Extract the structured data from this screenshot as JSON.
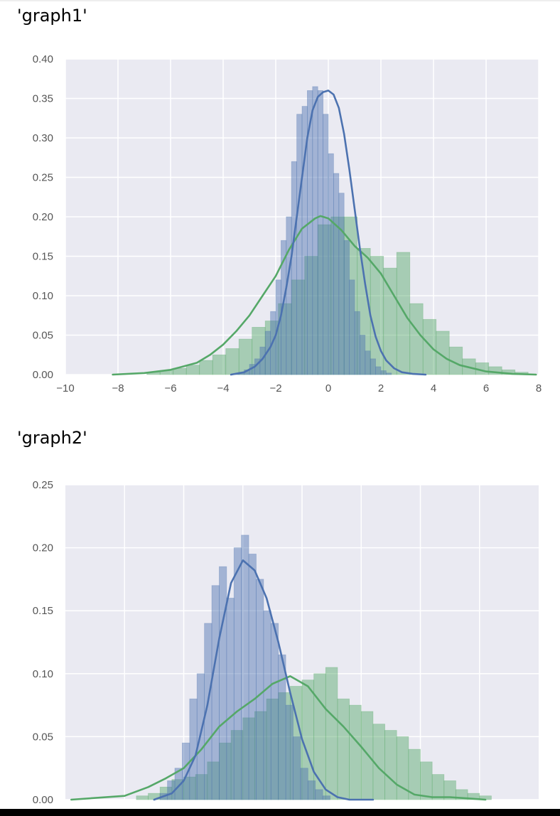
{
  "outputs": [
    {
      "label": "'graph1'"
    },
    {
      "label": "'graph2'"
    }
  ],
  "colors": {
    "background": "#eaeaf2",
    "grid": "#ffffff",
    "series_blue": "#4c72b0",
    "series_green": "#55a868"
  },
  "chart_data": [
    {
      "type": "histogram",
      "grid": true,
      "legend": "none",
      "xlim": [
        -10,
        8
      ],
      "ylim": [
        0,
        0.4
      ],
      "x_ticks": [
        "−10",
        "−8",
        "−6",
        "−4",
        "−2",
        "0",
        "2",
        "4",
        "6",
        "8"
      ],
      "x_tick_values": [
        -10,
        -8,
        -6,
        -4,
        -2,
        0,
        2,
        4,
        6,
        8
      ],
      "y_ticks": [
        "0.00",
        "0.05",
        "0.10",
        "0.15",
        "0.20",
        "0.25",
        "0.30",
        "0.35",
        "0.40"
      ],
      "y_tick_values": [
        0,
        0.05,
        0.1,
        0.15,
        0.2,
        0.25,
        0.3,
        0.35,
        0.4
      ],
      "series": [
        {
          "color": "blue",
          "bins": {
            "start": -3.6,
            "width": 0.2,
            "heights": [
              0.001,
              0.003,
              0.006,
              0.013,
              0.02,
              0.035,
              0.055,
              0.08,
              0.12,
              0.17,
              0.2,
              0.27,
              0.33,
              0.34,
              0.36,
              0.365,
              0.36,
              0.33,
              0.28,
              0.255,
              0.23,
              0.17,
              0.12,
              0.08,
              0.05,
              0.03,
              0.02,
              0.01,
              0.005,
              0.002
            ]
          },
          "kde": {
            "x": [
              -3.7,
              -3.2,
              -2.8,
              -2.5,
              -2.2,
              -2.0,
              -1.8,
              -1.6,
              -1.4,
              -1.2,
              -1.0,
              -0.8,
              -0.6,
              -0.4,
              -0.2,
              0.0,
              0.2,
              0.4,
              0.6,
              0.8,
              1.0,
              1.2,
              1.4,
              1.6,
              1.8,
              2.0,
              2.2,
              2.5,
              2.8,
              3.2,
              3.7
            ],
            "y": [
              0.0,
              0.003,
              0.01,
              0.02,
              0.035,
              0.05,
              0.075,
              0.11,
              0.15,
              0.2,
              0.25,
              0.3,
              0.335,
              0.352,
              0.358,
              0.36,
              0.355,
              0.338,
              0.305,
              0.26,
              0.21,
              0.16,
              0.115,
              0.075,
              0.048,
              0.03,
              0.018,
              0.008,
              0.003,
              0.001,
              0.0
            ]
          }
        },
        {
          "color": "green",
          "bins": {
            "start": -6.9,
            "width": 0.5,
            "heights": [
              0.003,
              0.005,
              0.008,
              0.012,
              0.018,
              0.025,
              0.033,
              0.045,
              0.06,
              0.068,
              0.09,
              0.12,
              0.15,
              0.19,
              0.2,
              0.2,
              0.16,
              0.15,
              0.135,
              0.155,
              0.09,
              0.07,
              0.055,
              0.035,
              0.02,
              0.015,
              0.01,
              0.006,
              0.003
            ]
          },
          "kde": {
            "x": [
              -8.2,
              -7.0,
              -6.0,
              -5.0,
              -4.5,
              -4.0,
              -3.5,
              -3.0,
              -2.5,
              -2.0,
              -1.5,
              -1.0,
              -0.5,
              -0.3,
              0.0,
              0.5,
              1.0,
              1.5,
              2.0,
              2.5,
              3.0,
              3.5,
              4.0,
              4.5,
              5.0,
              6.0,
              7.0,
              7.9
            ],
            "y": [
              0.0,
              0.002,
              0.006,
              0.015,
              0.025,
              0.038,
              0.055,
              0.075,
              0.1,
              0.125,
              0.158,
              0.185,
              0.198,
              0.201,
              0.198,
              0.183,
              0.163,
              0.148,
              0.128,
              0.1,
              0.072,
              0.05,
              0.032,
              0.02,
              0.012,
              0.004,
              0.001,
              0.0
            ]
          }
        }
      ]
    },
    {
      "type": "histogram",
      "grid": true,
      "legend": "none",
      "xlim": [
        0,
        8
      ],
      "ylim": [
        0,
        0.25
      ],
      "x_ticks": [],
      "x_grid_values": [
        1,
        2,
        3,
        4,
        5,
        6,
        7
      ],
      "y_ticks": [
        "0.00",
        "0.05",
        "0.10",
        "0.15",
        "0.20",
        "0.25"
      ],
      "y_tick_values": [
        0,
        0.05,
        0.1,
        0.15,
        0.2,
        0.25
      ],
      "series": [
        {
          "color": "blue",
          "bins": {
            "start": 1.6,
            "width": 0.125,
            "heights": [
              0.005,
              0.015,
              0.025,
              0.045,
              0.08,
              0.1,
              0.14,
              0.17,
              0.185,
              0.16,
              0.2,
              0.21,
              0.195,
              0.175,
              0.15,
              0.14,
              0.115,
              0.075,
              0.05,
              0.025,
              0.015,
              0.008,
              0.003
            ]
          },
          "kde": {
            "x": [
              1.5,
              1.8,
              2.0,
              2.2,
              2.4,
              2.6,
              2.8,
              3.0,
              3.2,
              3.4,
              3.6,
              3.8,
              4.0,
              4.2,
              4.4,
              4.6,
              4.8,
              5.2
            ],
            "y": [
              0.0,
              0.005,
              0.015,
              0.035,
              0.075,
              0.128,
              0.172,
              0.19,
              0.182,
              0.16,
              0.125,
              0.085,
              0.048,
              0.022,
              0.008,
              0.002,
              0.0,
              0.0
            ]
          }
        },
        {
          "color": "green",
          "bins": {
            "start": 1.2,
            "width": 0.2,
            "heights": [
              0.003,
              0.005,
              0.01,
              0.016,
              0.018,
              0.02,
              0.03,
              0.045,
              0.055,
              0.065,
              0.07,
              0.08,
              0.085,
              0.09,
              0.095,
              0.1,
              0.105,
              0.08,
              0.075,
              0.07,
              0.06,
              0.055,
              0.05,
              0.04,
              0.03,
              0.02,
              0.015,
              0.008,
              0.005,
              0.003
            ]
          },
          "kde": {
            "x": [
              0.1,
              1.0,
              1.4,
              1.7,
              2.0,
              2.3,
              2.6,
              2.9,
              3.2,
              3.5,
              3.8,
              4.1,
              4.4,
              4.7,
              5.0,
              5.3,
              5.6,
              5.9,
              6.2,
              6.5,
              6.8,
              7.1
            ],
            "y": [
              0.0,
              0.003,
              0.01,
              0.017,
              0.025,
              0.04,
              0.058,
              0.07,
              0.08,
              0.092,
              0.098,
              0.09,
              0.072,
              0.058,
              0.042,
              0.025,
              0.012,
              0.004,
              0.002,
              0.002,
              0.001,
              0.0
            ]
          }
        }
      ]
    }
  ]
}
